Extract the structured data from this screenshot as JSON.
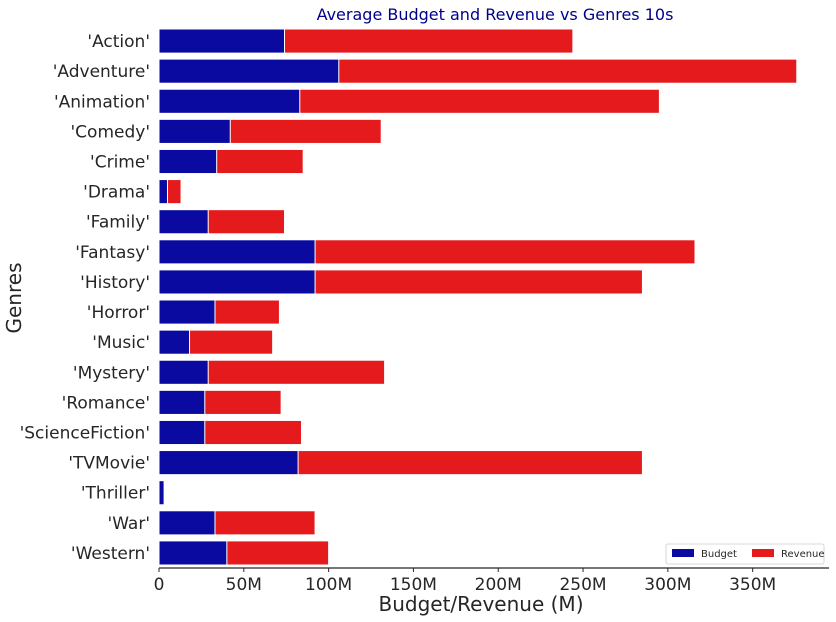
{
  "chart_data": {
    "type": "bar",
    "orientation": "horizontal",
    "stacked": "overlay",
    "title": "Average Budget and Revenue vs Genres 10s",
    "xlabel": "Budget/Revenue (M)",
    "ylabel": "Genres",
    "xlim": [
      0,
      395
    ],
    "xticks": [
      0,
      50,
      100,
      150,
      200,
      250,
      300,
      350
    ],
    "xtick_labels": [
      "0",
      "50M",
      "100M",
      "150M",
      "200M",
      "250M",
      "300M",
      "350M"
    ],
    "categories": [
      "'Action'",
      "'Adventure'",
      "'Animation'",
      "'Comedy'",
      "'Crime'",
      "'Drama'",
      "'Family'",
      "'Fantasy'",
      "'History'",
      "'Horror'",
      "'Music'",
      "'Mystery'",
      "'Romance'",
      "'ScienceFiction'",
      "'TVMovie'",
      "'Thriller'",
      "'War'",
      "'Western'"
    ],
    "series": [
      {
        "name": "Revenue",
        "color": "#e41a1c",
        "values": [
          244,
          376,
          295,
          131,
          85,
          13,
          74,
          316,
          285,
          71,
          67,
          133,
          72,
          84,
          285,
          0,
          92,
          100
        ]
      },
      {
        "name": "Budget",
        "color": "#0a0aa0",
        "values": [
          74,
          106,
          83,
          42,
          34,
          5,
          29,
          92,
          92,
          33,
          18,
          29,
          27,
          27,
          82,
          3,
          33,
          40
        ]
      }
    ],
    "legend": {
      "position": "bottom-right",
      "entries": [
        "Budget",
        "Revenue"
      ]
    },
    "grid": false,
    "title_color": "#00008b"
  }
}
